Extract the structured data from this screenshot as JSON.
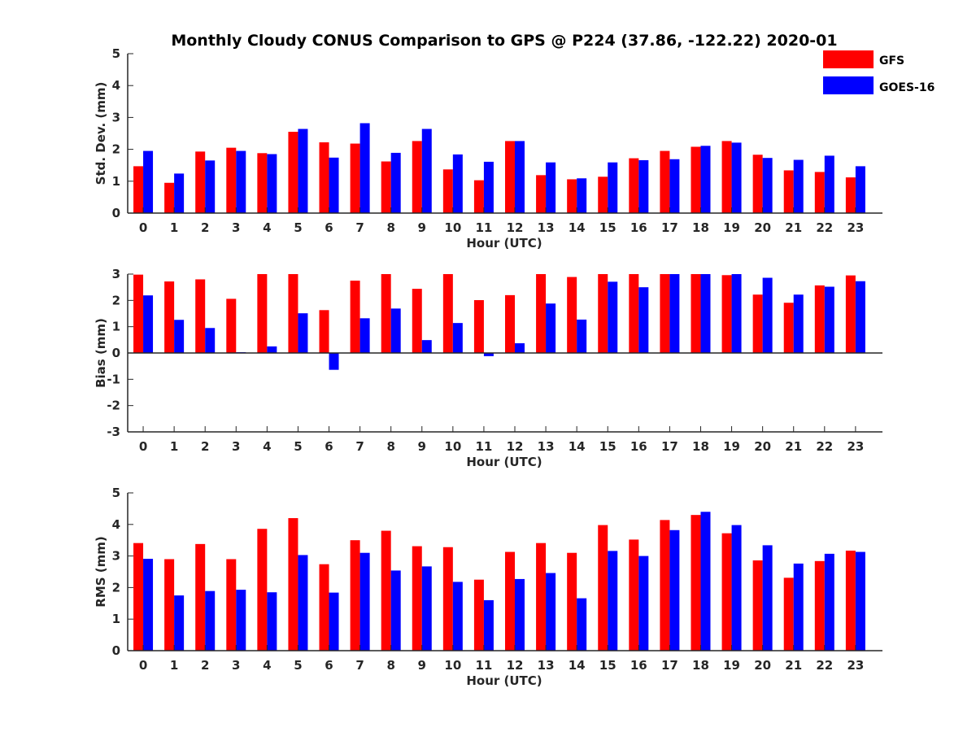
{
  "title": "Monthly Cloudy CONUS Comparison to GPS @ P224 (37.86, -122.22) 2020-01",
  "legend": [
    {
      "name": "GFS",
      "color": "#ff0000"
    },
    {
      "name": "GOES-16",
      "color": "#0000ff"
    }
  ],
  "chart_data": [
    {
      "type": "bar",
      "xlabel": "Hour (UTC)",
      "ylabel": "Std. Dev. (mm)",
      "ylim": [
        0,
        5
      ],
      "yticks": [
        "0",
        "1",
        "2",
        "3",
        "4",
        "5"
      ],
      "categories": [
        "0",
        "1",
        "2",
        "3",
        "4",
        "5",
        "6",
        "7",
        "8",
        "9",
        "10",
        "11",
        "12",
        "13",
        "14",
        "15",
        "16",
        "17",
        "18",
        "19",
        "20",
        "21",
        "22",
        "23"
      ],
      "series": [
        {
          "name": "GFS",
          "values": [
            1.47,
            0.95,
            1.93,
            2.05,
            1.88,
            2.55,
            2.22,
            2.18,
            1.62,
            2.26,
            1.37,
            1.03,
            2.26,
            1.19,
            1.06,
            1.14,
            1.72,
            1.95,
            2.08,
            2.26,
            1.83,
            1.34,
            1.29,
            1.12
          ]
        },
        {
          "name": "GOES-16",
          "values": [
            1.95,
            1.24,
            1.65,
            1.95,
            1.85,
            2.64,
            1.74,
            2.82,
            1.89,
            2.64,
            1.84,
            1.61,
            2.26,
            1.59,
            1.09,
            1.59,
            1.66,
            1.69,
            2.11,
            2.21,
            1.73,
            1.67,
            1.8,
            1.47
          ]
        }
      ]
    },
    {
      "type": "bar",
      "xlabel": "Hour (UTC)",
      "ylabel": "Bias (mm)",
      "ylim": [
        -3,
        3
      ],
      "yticks": [
        "-3",
        "-2",
        "-1",
        "0",
        "1",
        "2",
        "3"
      ],
      "categories": [
        "0",
        "1",
        "2",
        "3",
        "4",
        "5",
        "6",
        "7",
        "8",
        "9",
        "10",
        "11",
        "12",
        "13",
        "14",
        "15",
        "16",
        "17",
        "18",
        "19",
        "20",
        "21",
        "22",
        "23"
      ],
      "series": [
        {
          "name": "GFS",
          "values": [
            2.98,
            2.72,
            2.8,
            2.06,
            3.0,
            3.0,
            1.63,
            2.75,
            3.0,
            2.44,
            3.0,
            2.01,
            2.2,
            3.0,
            2.89,
            3.0,
            3.0,
            3.0,
            3.0,
            2.96,
            2.22,
            1.91,
            2.57,
            2.95
          ]
        },
        {
          "name": "GOES-16",
          "values": [
            2.19,
            1.26,
            0.95,
            0.03,
            0.25,
            1.51,
            -0.64,
            1.32,
            1.69,
            0.49,
            1.14,
            -0.12,
            0.37,
            1.88,
            1.27,
            2.71,
            2.5,
            3.0,
            3.0,
            3.0,
            2.86,
            2.22,
            2.52,
            2.73
          ]
        }
      ]
    },
    {
      "type": "bar",
      "xlabel": "Hour (UTC)",
      "ylabel": "RMS (mm)",
      "ylim": [
        0,
        5
      ],
      "yticks": [
        "0",
        "1",
        "2",
        "3",
        "4",
        "5"
      ],
      "categories": [
        "0",
        "1",
        "2",
        "3",
        "4",
        "5",
        "6",
        "7",
        "8",
        "9",
        "10",
        "11",
        "12",
        "13",
        "14",
        "15",
        "16",
        "17",
        "18",
        "19",
        "20",
        "21",
        "22",
        "23"
      ],
      "series": [
        {
          "name": "GFS",
          "values": [
            3.41,
            2.9,
            3.38,
            2.9,
            3.86,
            4.2,
            2.74,
            3.5,
            3.8,
            3.31,
            3.28,
            2.25,
            3.13,
            3.41,
            3.1,
            3.98,
            3.52,
            4.14,
            4.3,
            3.72,
            2.86,
            2.31,
            2.84,
            3.17
          ]
        },
        {
          "name": "GOES-16",
          "values": [
            2.91,
            1.75,
            1.89,
            1.93,
            1.85,
            3.03,
            1.84,
            3.1,
            2.54,
            2.67,
            2.18,
            1.6,
            2.27,
            2.46,
            1.66,
            3.16,
            3.0,
            3.82,
            4.4,
            3.98,
            3.34,
            2.76,
            3.07,
            3.13
          ]
        }
      ]
    }
  ]
}
